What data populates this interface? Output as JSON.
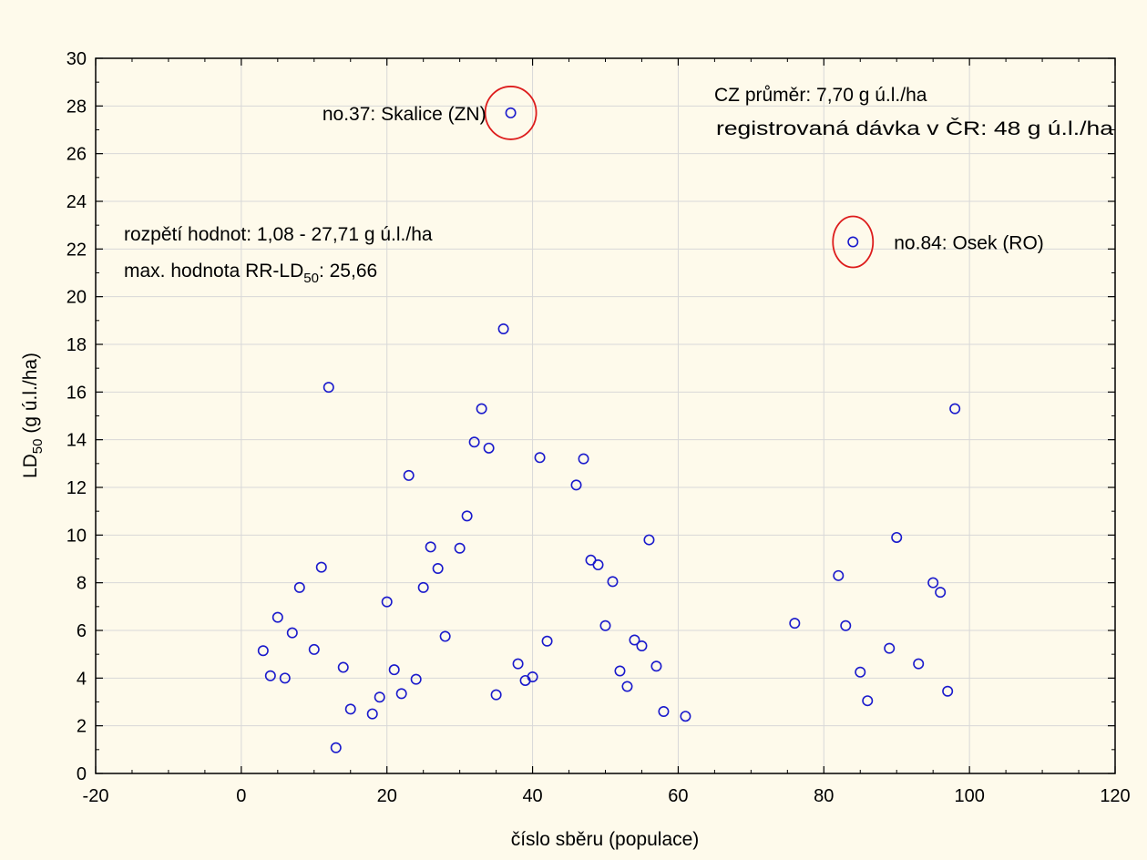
{
  "chart_data": {
    "type": "scatter",
    "title": "",
    "xlabel": "číslo sběru (populace)",
    "ylabel": {
      "main": "LD",
      "sub": "50",
      "rest": " (g ú.l./ha)"
    },
    "xlim": [
      -20,
      120
    ],
    "ylim": [
      0,
      30
    ],
    "xticks": [
      -20,
      0,
      20,
      40,
      60,
      80,
      100,
      120
    ],
    "yticks": [
      0,
      2,
      4,
      6,
      8,
      10,
      12,
      14,
      16,
      18,
      20,
      22,
      24,
      26,
      28,
      30
    ],
    "grid": true,
    "marker_color": "#1a1acc",
    "highlight_color": "#dd1c1c",
    "points": [
      [
        3,
        5.15
      ],
      [
        4,
        4.1
      ],
      [
        5,
        6.55
      ],
      [
        6,
        4.0
      ],
      [
        7,
        5.9
      ],
      [
        8,
        7.8
      ],
      [
        10,
        5.2
      ],
      [
        11,
        8.65
      ],
      [
        12,
        16.2
      ],
      [
        13,
        1.08
      ],
      [
        14,
        4.45
      ],
      [
        15,
        2.7
      ],
      [
        18,
        2.5
      ],
      [
        19,
        3.2
      ],
      [
        20,
        7.2
      ],
      [
        21,
        4.35
      ],
      [
        22,
        3.35
      ],
      [
        23,
        12.5
      ],
      [
        24,
        3.95
      ],
      [
        25,
        7.8
      ],
      [
        26,
        9.5
      ],
      [
        27,
        8.6
      ],
      [
        28,
        5.75
      ],
      [
        30,
        9.45
      ],
      [
        31,
        10.8
      ],
      [
        32,
        13.9
      ],
      [
        33,
        15.3
      ],
      [
        34,
        13.65
      ],
      [
        35,
        3.3
      ],
      [
        36,
        18.65
      ],
      [
        37,
        27.71
      ],
      [
        38,
        4.6
      ],
      [
        39,
        3.9
      ],
      [
        40,
        4.05
      ],
      [
        41,
        13.25
      ],
      [
        42,
        5.55
      ],
      [
        46,
        12.1
      ],
      [
        47,
        13.2
      ],
      [
        48,
        8.95
      ],
      [
        49,
        8.75
      ],
      [
        50,
        6.2
      ],
      [
        51,
        8.05
      ],
      [
        52,
        4.3
      ],
      [
        53,
        3.65
      ],
      [
        54,
        5.6
      ],
      [
        55,
        5.35
      ],
      [
        56,
        9.8
      ],
      [
        57,
        4.5
      ],
      [
        58,
        2.6
      ],
      [
        61,
        2.4
      ],
      [
        76,
        6.3
      ],
      [
        82,
        8.3
      ],
      [
        83,
        6.2
      ],
      [
        84,
        22.3
      ],
      [
        85,
        4.25
      ],
      [
        86,
        3.05
      ],
      [
        89,
        5.25
      ],
      [
        90,
        9.9
      ],
      [
        93,
        4.6
      ],
      [
        95,
        8.0
      ],
      [
        96,
        7.6
      ],
      [
        97,
        3.45
      ],
      [
        98,
        15.3
      ]
    ],
    "highlights": [
      {
        "x": 37,
        "y": 27.71,
        "label": "no.37: Skalice (ZN)",
        "label_side": "left"
      },
      {
        "x": 84,
        "y": 22.3,
        "label": "no.84: Osek (RO)",
        "label_side": "right"
      }
    ],
    "annotations": {
      "cz_mean": "CZ průměr: 7,70 g ú.l./ha",
      "registered_dose": "registrovaná dávka v ČR: 48 g ú.l./ha",
      "range": "rozpětí hodnot: 1,08 - 27,71 g ú.l./ha",
      "max_rr_prefix": "max. hodnota RR-LD",
      "max_rr_sub": "50",
      "max_rr_suffix": ": 25,66"
    }
  }
}
